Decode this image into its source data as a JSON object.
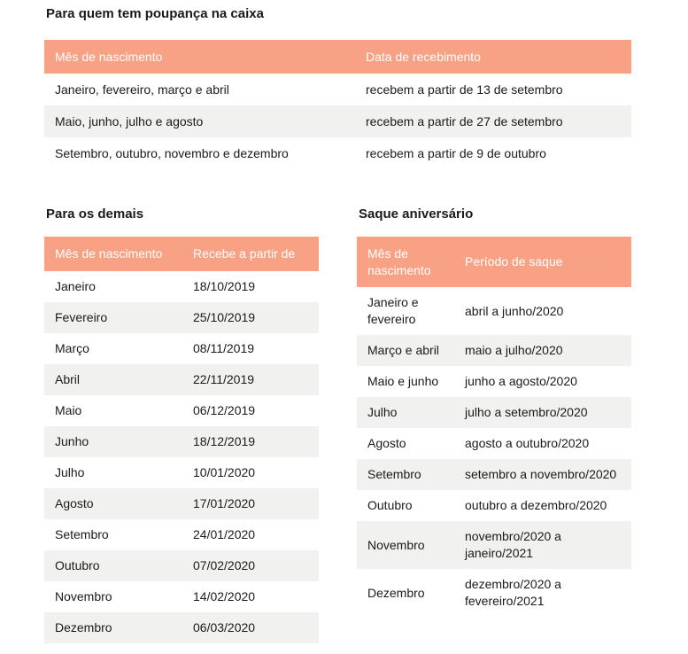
{
  "colors": {
    "header_bg": "#F9A185",
    "header_text": "#FFFFFF",
    "row_alt_bg": "#F1F1F0",
    "body_text": "#1A1A1A"
  },
  "tables": {
    "poupanca": {
      "title": "Para quem tem poupança na caixa",
      "columns": [
        "Mês de nascimento",
        "Data de recebimento"
      ],
      "rows": [
        [
          "Janeiro, fevereiro, março e abril",
          "recebem a partir de 13 de setembro"
        ],
        [
          "Maio, junho, julho e agosto",
          "recebem a partir de 27 de setembro"
        ],
        [
          "Setembro, outubro, novembro e dezembro",
          "recebem a partir de 9 de outubro"
        ]
      ]
    },
    "demais": {
      "title": "Para os demais",
      "columns": [
        "Mês de nascimento",
        "Recebe a partir de"
      ],
      "rows": [
        [
          "Janeiro",
          "18/10/2019"
        ],
        [
          "Fevereiro",
          "25/10/2019"
        ],
        [
          "Março",
          "08/11/2019"
        ],
        [
          "Abril",
          "22/11/2019"
        ],
        [
          "Maio",
          "06/12/2019"
        ],
        [
          "Junho",
          "18/12/2019"
        ],
        [
          "Julho",
          "10/01/2020"
        ],
        [
          "Agosto",
          "17/01/2020"
        ],
        [
          "Setembro",
          "24/01/2020"
        ],
        [
          "Outubro",
          "07/02/2020"
        ],
        [
          "Novembro",
          "14/02/2020"
        ],
        [
          "Dezembro",
          "06/03/2020"
        ]
      ]
    },
    "aniversario": {
      "title": "Saque aniversário",
      "columns": [
        "Mês de nascimento",
        "Período de saque"
      ],
      "rows": [
        [
          "Janeiro e fevereiro",
          "abril a junho/2020"
        ],
        [
          "Março e abril",
          "maio a julho/2020"
        ],
        [
          "Maio e junho",
          "junho a agosto/2020"
        ],
        [
          "Julho",
          "julho a setembro/2020"
        ],
        [
          "Agosto",
          "agosto a outubro/2020"
        ],
        [
          "Setembro",
          "setembro a novembro/2020"
        ],
        [
          "Outubro",
          "outubro a dezembro/2020"
        ],
        [
          "Novembro",
          "novembro/2020 a janeiro/2021"
        ],
        [
          "Dezembro",
          "dezembro/2020 a fevereiro/2021"
        ]
      ]
    }
  }
}
